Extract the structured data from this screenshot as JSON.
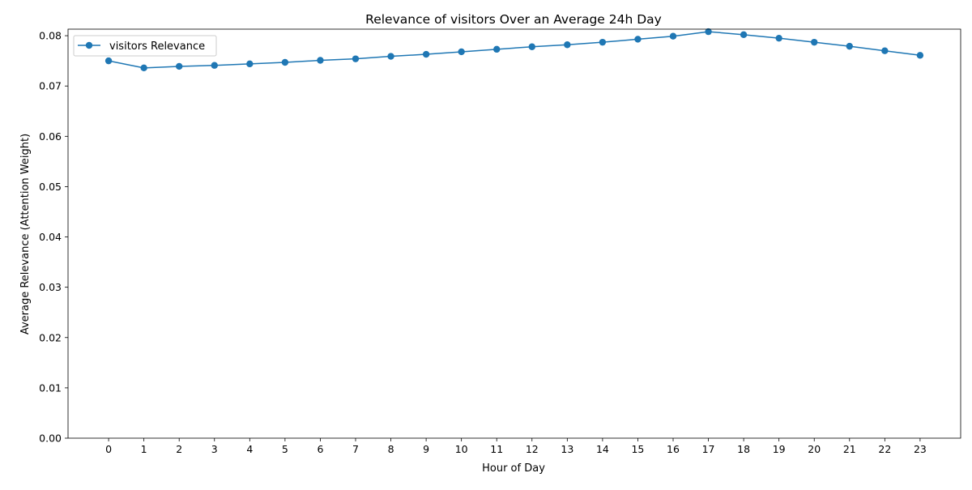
{
  "chart_data": {
    "type": "line",
    "title": "Relevance of visitors Over an Average 24h Day",
    "xlabel": "Hour of Day",
    "ylabel": "Average Relevance (Attention Weight)",
    "x": [
      0,
      1,
      2,
      3,
      4,
      5,
      6,
      7,
      8,
      9,
      10,
      11,
      12,
      13,
      14,
      15,
      16,
      17,
      18,
      19,
      20,
      21,
      22,
      23
    ],
    "xlim": [
      -1.15,
      24.15
    ],
    "ylim": [
      0,
      0.0813
    ],
    "yticks": [
      0.0,
      0.01,
      0.02,
      0.03,
      0.04,
      0.05,
      0.06,
      0.07,
      0.08
    ],
    "ytick_labels": [
      "0.00",
      "0.01",
      "0.02",
      "0.03",
      "0.04",
      "0.05",
      "0.06",
      "0.07",
      "0.08"
    ],
    "grid": false,
    "legend_position": "upper-left",
    "series": [
      {
        "name": "visitors Relevance",
        "color": "#1f77b4",
        "marker": "circle",
        "values": [
          0.075,
          0.0736,
          0.0739,
          0.0741,
          0.0744,
          0.0747,
          0.0751,
          0.0754,
          0.0759,
          0.0763,
          0.0768,
          0.0773,
          0.0778,
          0.0782,
          0.0787,
          0.0793,
          0.0799,
          0.0808,
          0.0802,
          0.0795,
          0.0787,
          0.0779,
          0.077,
          0.0761
        ]
      }
    ]
  }
}
